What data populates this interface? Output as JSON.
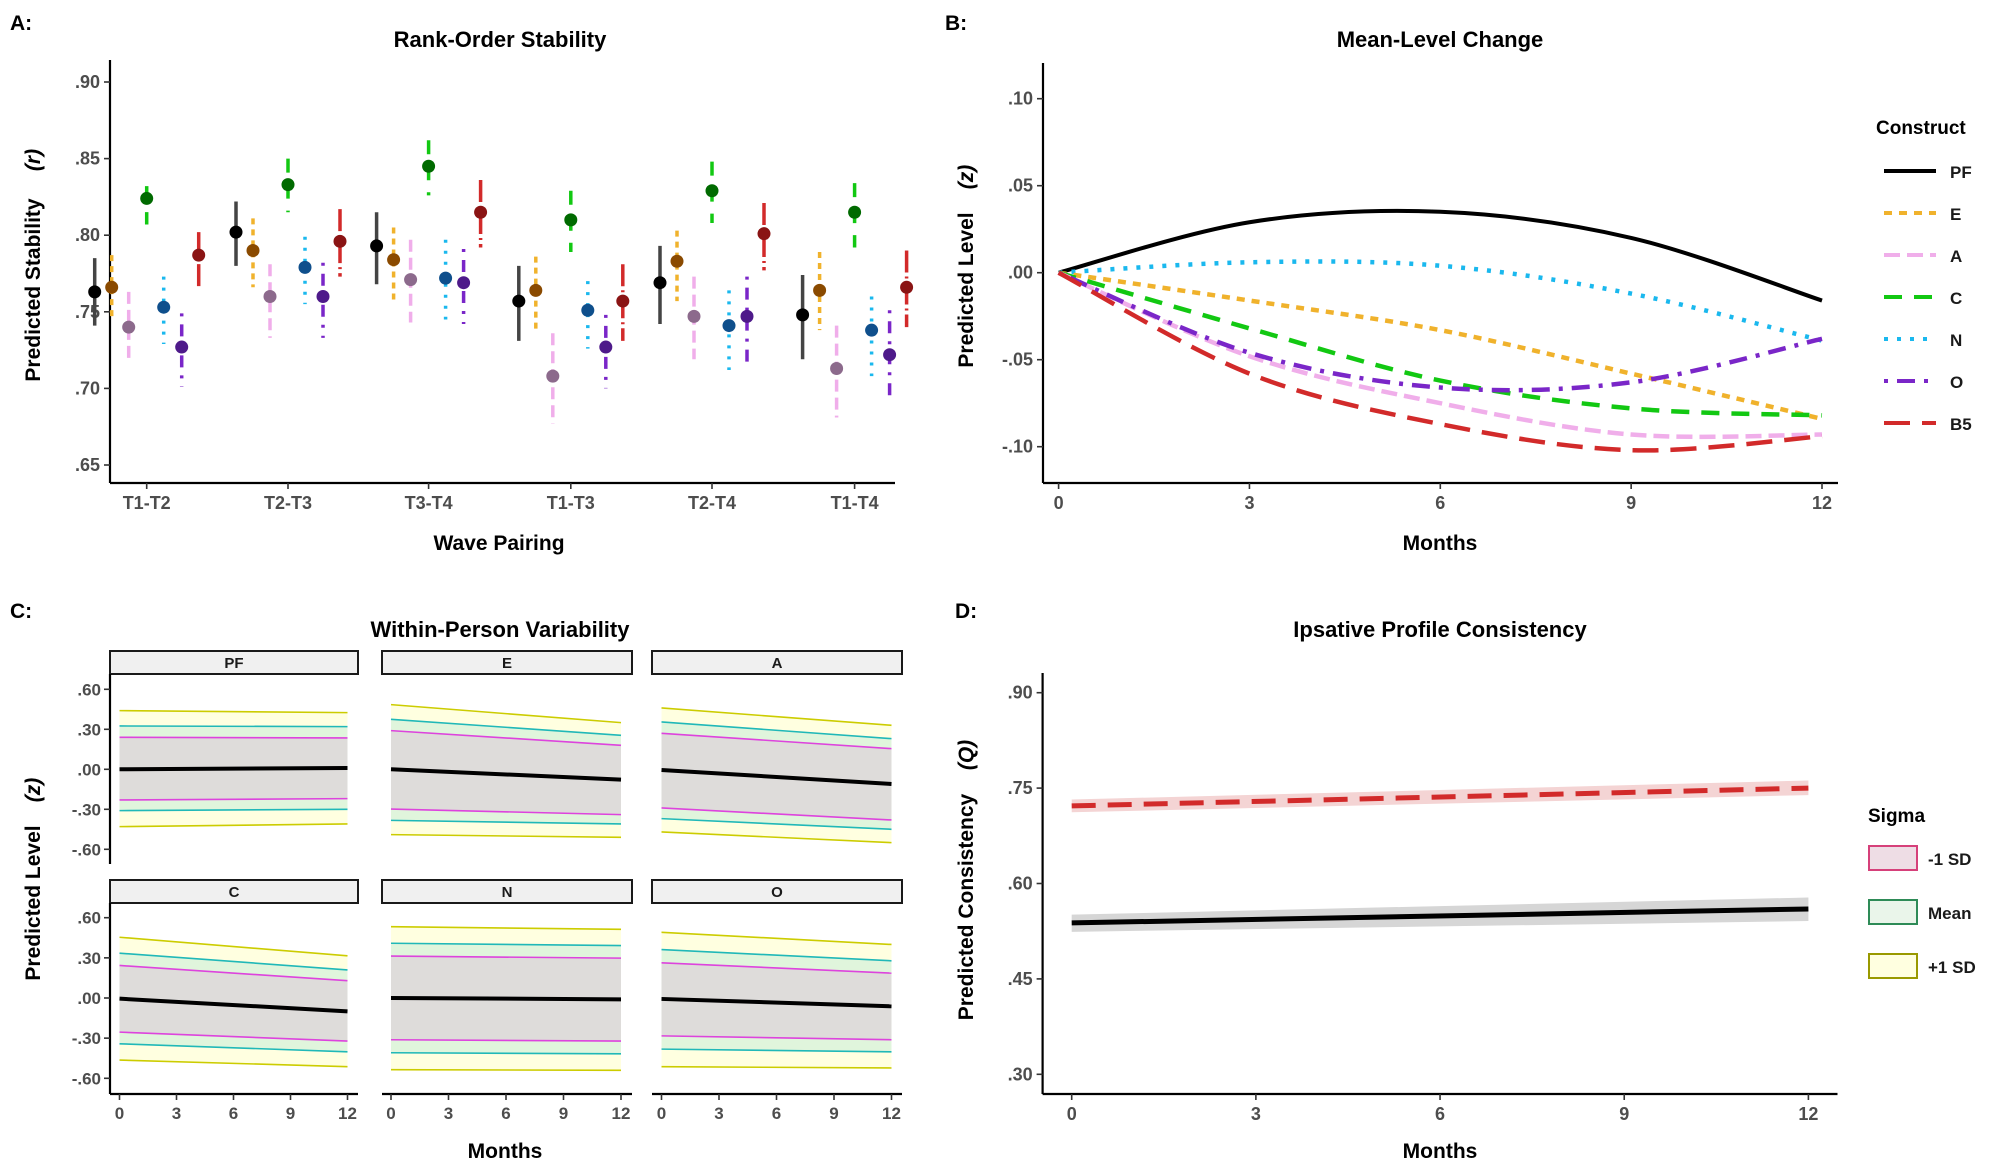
{
  "figure": {
    "panel_labels": [
      "A:",
      "B:",
      "C:",
      "D:"
    ]
  },
  "colors": {
    "PF": "#000000",
    "E": "#f0b22c",
    "A": "#f0aeea",
    "C": "#12c812",
    "N": "#1ab8ee",
    "O": "#7a26c8",
    "B5": "#d22a2a",
    "point_PF": "#000000",
    "point_E": "#8a4a00",
    "point_A": "#8c6a8c",
    "point_C": "#006a00",
    "point_N": "#0f4f8c",
    "point_O": "#4e1a8a",
    "point_B5": "#8a1414",
    "sigma_minus_fill": "#dedcda",
    "sigma_minus_line": "#dd44dd",
    "sigma_mean_fill": "#e0f5dc",
    "sigma_mean_line": "#20b8b8",
    "sigma_plus_fill": "#ffffe0",
    "sigma_plus_line": "#cccc00",
    "legend_minus_border": "#d6407a",
    "legend_minus_fill": "#eedde5",
    "legend_mean_border": "#2e8b57",
    "legend_mean_fill": "#eaf5ea",
    "legend_plus_border": "#999900",
    "legend_plus_fill": "#ffffe0",
    "ipsative_red": "#d22a2a",
    "ipsative_red_band": "#f4d4d4",
    "ipsative_black": "#000000",
    "ipsative_black_band": "#d6d6d6"
  },
  "chart_data": [
    {
      "id": "A",
      "type": "scatter",
      "title": "Rank-Order Stability",
      "xlabel": "Wave Pairing",
      "ylabel": "Predicted Stability",
      "ylabel_symbol": "(r)",
      "ylim": [
        0.64,
        0.91
      ],
      "yticks": [
        0.65,
        0.7,
        0.75,
        0.8,
        0.85,
        0.9
      ],
      "ytick_labels": [
        ".65",
        ".70",
        ".75",
        ".80",
        ".85",
        ".90"
      ],
      "categories": [
        "T1-T2",
        "T2-T3",
        "T3-T4",
        "T1-T3",
        "T2-T4",
        "T1-T4"
      ],
      "grid": false,
      "series": [
        {
          "name": "PF",
          "linetype": "solid",
          "values": [
            0.763,
            0.802,
            0.793,
            0.757,
            0.769,
            0.748
          ],
          "lower": [
            0.741,
            0.78,
            0.768,
            0.731,
            0.742,
            0.719
          ],
          "upper": [
            0.785,
            0.822,
            0.815,
            0.78,
            0.793,
            0.774
          ]
        },
        {
          "name": "E",
          "linetype": "dotted-dash",
          "values": [
            0.766,
            0.79,
            0.784,
            0.764,
            0.783,
            0.764
          ],
          "lower": [
            0.744,
            0.766,
            0.757,
            0.739,
            0.757,
            0.738
          ],
          "upper": [
            0.787,
            0.811,
            0.805,
            0.786,
            0.803,
            0.789
          ]
        },
        {
          "name": "A",
          "linetype": "dashed",
          "values": [
            0.74,
            0.76,
            0.771,
            0.708,
            0.747,
            0.713
          ],
          "lower": [
            0.716,
            0.733,
            0.743,
            0.677,
            0.719,
            0.681
          ],
          "upper": [
            0.763,
            0.781,
            0.797,
            0.736,
            0.773,
            0.741
          ]
        },
        {
          "name": "C",
          "linetype": "longdash",
          "values": [
            0.824,
            0.833,
            0.845,
            0.81,
            0.829,
            0.815
          ],
          "lower": [
            0.807,
            0.815,
            0.826,
            0.789,
            0.808,
            0.792
          ],
          "upper": [
            0.832,
            0.85,
            0.862,
            0.829,
            0.848,
            0.834
          ]
        },
        {
          "name": "N",
          "linetype": "dotted",
          "values": [
            0.753,
            0.779,
            0.772,
            0.751,
            0.741,
            0.738
          ],
          "lower": [
            0.729,
            0.755,
            0.745,
            0.726,
            0.712,
            0.708
          ],
          "upper": [
            0.773,
            0.799,
            0.797,
            0.77,
            0.764,
            0.76
          ]
        },
        {
          "name": "O",
          "linetype": "dotdash",
          "values": [
            0.727,
            0.76,
            0.769,
            0.727,
            0.747,
            0.722
          ],
          "lower": [
            0.701,
            0.733,
            0.742,
            0.7,
            0.717,
            0.691
          ],
          "upper": [
            0.749,
            0.782,
            0.791,
            0.748,
            0.773,
            0.751
          ]
        },
        {
          "name": "B5",
          "linetype": "solid-dash",
          "values": [
            0.787,
            0.796,
            0.815,
            0.757,
            0.801,
            0.766
          ],
          "lower": [
            0.765,
            0.773,
            0.792,
            0.731,
            0.777,
            0.74
          ],
          "upper": [
            0.802,
            0.817,
            0.836,
            0.781,
            0.821,
            0.79
          ]
        }
      ]
    },
    {
      "id": "B",
      "type": "line",
      "title": "Mean-Level Change",
      "xlabel": "Months",
      "ylabel": "Predicted Level",
      "ylabel_symbol": "(z)",
      "xlim": [
        -0.5,
        12.5
      ],
      "ylim": [
        -0.12,
        0.12
      ],
      "xticks": [
        0,
        3,
        6,
        9,
        12
      ],
      "xtick_labels": [
        "0",
        "3",
        "6",
        "9",
        "12"
      ],
      "yticks": [
        -0.1,
        -0.05,
        0.0,
        0.05,
        0.1
      ],
      "ytick_labels": [
        "-.10",
        "-.05",
        ".00",
        ".05",
        ".10"
      ],
      "x": [
        0,
        3,
        6,
        9,
        12
      ],
      "legend": {
        "title": "Construct",
        "position": "right"
      },
      "series": [
        {
          "name": "PF",
          "dash": "solid",
          "values": [
            0.0,
            0.029,
            0.035,
            0.02,
            -0.016
          ]
        },
        {
          "name": "E",
          "dash": "dotted-dash",
          "values": [
            0.0,
            -0.016,
            -0.033,
            -0.058,
            -0.084
          ]
        },
        {
          "name": "A",
          "dash": "dashed",
          "values": [
            0.0,
            -0.048,
            -0.075,
            -0.093,
            -0.093
          ]
        },
        {
          "name": "C",
          "dash": "longdash",
          "values": [
            0.0,
            -0.032,
            -0.062,
            -0.078,
            -0.082
          ]
        },
        {
          "name": "N",
          "dash": "dotted",
          "values": [
            0.0,
            0.006,
            0.004,
            -0.012,
            -0.039
          ]
        },
        {
          "name": "O",
          "dash": "dotdash",
          "values": [
            0.0,
            -0.046,
            -0.066,
            -0.063,
            -0.038
          ]
        },
        {
          "name": "B5",
          "dash": "twodash",
          "values": [
            0.0,
            -0.058,
            -0.087,
            -0.102,
            -0.094
          ]
        }
      ]
    },
    {
      "id": "C",
      "type": "area",
      "title": "Within-Person Variability",
      "xlabel": "Months",
      "ylabel": "Predicted Level",
      "ylabel_symbol": "(z)",
      "xlim": [
        -0.5,
        12.5
      ],
      "ylim": [
        -0.72,
        0.72
      ],
      "xticks": [
        0,
        3,
        6,
        9,
        12
      ],
      "xtick_labels": [
        "0",
        "3",
        "6",
        "9",
        "12"
      ],
      "yticks": [
        -0.6,
        -0.3,
        0.0,
        0.3,
        0.6
      ],
      "ytick_labels": [
        "-.60",
        "-.30",
        ".00",
        ".30",
        ".60"
      ],
      "x": [
        0,
        12
      ],
      "facets": [
        {
          "name": "PF",
          "mean": [
            0.0,
            0.01
          ],
          "minus1sd": {
            "upper": [
              0.24,
              0.235
            ],
            "lower": [
              -0.23,
              -0.22
            ]
          },
          "mean_sd": {
            "upper": [
              0.325,
              0.32
            ],
            "lower": [
              -0.31,
              -0.3
            ]
          },
          "plus1sd": {
            "upper": [
              0.44,
              0.425
            ],
            "lower": [
              -0.43,
              -0.41
            ]
          }
        },
        {
          "name": "E",
          "mean": [
            0.0,
            -0.077
          ],
          "minus1sd": {
            "upper": [
              0.29,
              0.18
            ],
            "lower": [
              -0.298,
              -0.34
            ]
          },
          "mean_sd": {
            "upper": [
              0.375,
              0.255
            ],
            "lower": [
              -0.383,
              -0.41
            ]
          },
          "plus1sd": {
            "upper": [
              0.485,
              0.35
            ],
            "lower": [
              -0.49,
              -0.51
            ]
          }
        },
        {
          "name": "A",
          "mean": [
            -0.005,
            -0.11
          ],
          "minus1sd": {
            "upper": [
              0.27,
              0.155
            ],
            "lower": [
              -0.29,
              -0.38
            ]
          },
          "mean_sd": {
            "upper": [
              0.355,
              0.23
            ],
            "lower": [
              -0.37,
              -0.45
            ]
          },
          "plus1sd": {
            "upper": [
              0.46,
              0.33
            ],
            "lower": [
              -0.47,
              -0.55
            ]
          }
        },
        {
          "name": "C",
          "mean": [
            -0.005,
            -0.1
          ],
          "minus1sd": {
            "upper": [
              0.243,
              0.129
            ],
            "lower": [
              -0.255,
              -0.322
            ]
          },
          "mean_sd": {
            "upper": [
              0.335,
              0.21
            ],
            "lower": [
              -0.342,
              -0.402
            ]
          },
          "plus1sd": {
            "upper": [
              0.454,
              0.315
            ],
            "lower": [
              -0.464,
              -0.513
            ]
          }
        },
        {
          "name": "N",
          "mean": [
            0.0,
            -0.01
          ],
          "minus1sd": {
            "upper": [
              0.313,
              0.298
            ],
            "lower": [
              -0.312,
              -0.322
            ]
          },
          "mean_sd": {
            "upper": [
              0.409,
              0.392
            ],
            "lower": [
              -0.409,
              -0.417
            ]
          },
          "plus1sd": {
            "upper": [
              0.533,
              0.513
            ],
            "lower": [
              -0.536,
              -0.54
            ]
          }
        },
        {
          "name": "O",
          "mean": [
            -0.007,
            -0.062
          ],
          "minus1sd": {
            "upper": [
              0.263,
              0.186
            ],
            "lower": [
              -0.283,
              -0.312
            ]
          },
          "mean_sd": {
            "upper": [
              0.362,
              0.278
            ],
            "lower": [
              -0.382,
              -0.402
            ]
          },
          "plus1sd": {
            "upper": [
              0.491,
              0.4
            ],
            "lower": [
              -0.513,
              -0.523
            ]
          }
        }
      ]
    },
    {
      "id": "D",
      "type": "line",
      "title": "Ipsative Profile Consistency",
      "xlabel": "Months",
      "ylabel": "Predicted Consistency",
      "ylabel_symbol": "(Q)",
      "xlim": [
        -0.5,
        12.5
      ],
      "ylim": [
        0.27,
        0.93
      ],
      "xticks": [
        0,
        3,
        6,
        9,
        12
      ],
      "xtick_labels": [
        "0",
        "3",
        "6",
        "9",
        "12"
      ],
      "yticks": [
        0.3,
        0.45,
        0.6,
        0.75,
        0.9
      ],
      "ytick_labels": [
        ".30",
        ".45",
        ".60",
        ".75",
        ".90"
      ],
      "x": [
        0,
        12
      ],
      "legend": {
        "title": "Sigma",
        "position": "right",
        "entries": [
          "-1 SD",
          "Mean",
          "+1 SD"
        ]
      },
      "series": [
        {
          "name": "red-dashed",
          "dash": "dashed",
          "values": [
            0.722,
            0.75
          ],
          "band_lower": [
            0.712,
            0.739
          ],
          "band_upper": [
            0.732,
            0.762
          ]
        },
        {
          "name": "black-solid",
          "dash": "solid",
          "values": [
            0.538,
            0.56
          ],
          "band_lower": [
            0.524,
            0.541
          ],
          "band_upper": [
            0.551,
            0.578
          ]
        }
      ]
    }
  ]
}
